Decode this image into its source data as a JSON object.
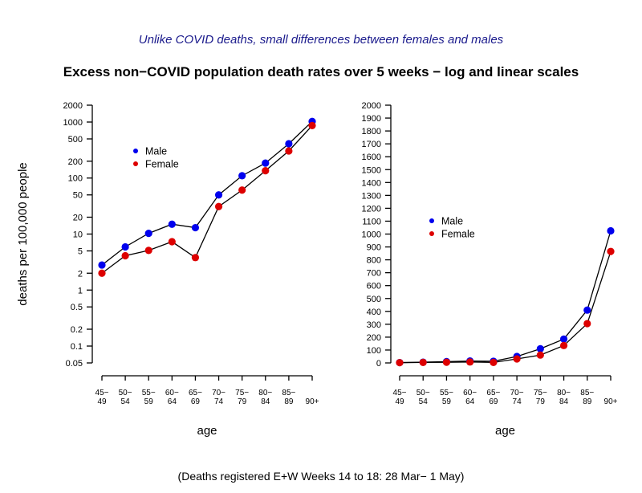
{
  "page": {
    "subtitle": "Unlike COVID deaths, small differences between females and males",
    "title": "Excess non−COVID population death rates over 5 weeks − log and linear scales",
    "caption": "(Deaths registered E+W Weeks 14 to 18: 28 Mar− 1 May)"
  },
  "colors": {
    "male": "#0000ee",
    "female": "#dd0000",
    "subtitle_blue": "#1a1a8c",
    "axis": "#000000"
  },
  "chart_data": [
    {
      "type": "line",
      "scale": "log",
      "title": "",
      "xlabel": "age",
      "ylabel": "deaths per 100,000 people",
      "ylim": [
        0.05,
        2000
      ],
      "yticks": [
        2000,
        1000,
        500,
        200,
        100,
        50,
        20,
        10,
        5,
        2,
        1,
        0.5,
        0.2,
        0.1,
        0.05
      ],
      "categories": [
        [
          "45−",
          "49"
        ],
        [
          "50−",
          "54"
        ],
        [
          "55−",
          "59"
        ],
        [
          "60−",
          "64"
        ],
        [
          "65−",
          "69"
        ],
        [
          "70−",
          "74"
        ],
        [
          "75−",
          "79"
        ],
        [
          "80−",
          "84"
        ],
        [
          "85−",
          "89"
        ],
        [
          "90+"
        ]
      ],
      "series": [
        {
          "name": "Male",
          "color": "#0000ee",
          "values": [
            2.8,
            5.9,
            10.3,
            15,
            13,
            50,
            110,
            185,
            410,
            1025
          ]
        },
        {
          "name": "Female",
          "color": "#dd0000",
          "values": [
            2.0,
            4.1,
            5.1,
            7.3,
            3.8,
            31,
            61,
            135,
            305,
            865
          ]
        }
      ],
      "legend_position": "upper-left-inside",
      "grid": false
    },
    {
      "type": "line",
      "scale": "linear",
      "title": "",
      "xlabel": "age",
      "ylabel": "",
      "ylim": [
        0,
        2000
      ],
      "yticks": [
        2000,
        1900,
        1800,
        1700,
        1600,
        1500,
        1400,
        1300,
        1200,
        1100,
        1000,
        900,
        800,
        700,
        600,
        500,
        400,
        300,
        200,
        100,
        0
      ],
      "categories": [
        [
          "45−",
          "49"
        ],
        [
          "50−",
          "54"
        ],
        [
          "55−",
          "59"
        ],
        [
          "60−",
          "64"
        ],
        [
          "65−",
          "69"
        ],
        [
          "70−",
          "74"
        ],
        [
          "75−",
          "79"
        ],
        [
          "80−",
          "84"
        ],
        [
          "85−",
          "89"
        ],
        [
          "90+"
        ]
      ],
      "series": [
        {
          "name": "Male",
          "color": "#0000ee",
          "values": [
            2.8,
            5.9,
            10.3,
            15,
            13,
            50,
            110,
            185,
            410,
            1025
          ]
        },
        {
          "name": "Female",
          "color": "#dd0000",
          "values": [
            2.0,
            4.1,
            5.1,
            7.3,
            3.8,
            31,
            61,
            135,
            305,
            865
          ]
        }
      ],
      "legend_position": "middle-left-inside",
      "grid": false
    }
  ]
}
